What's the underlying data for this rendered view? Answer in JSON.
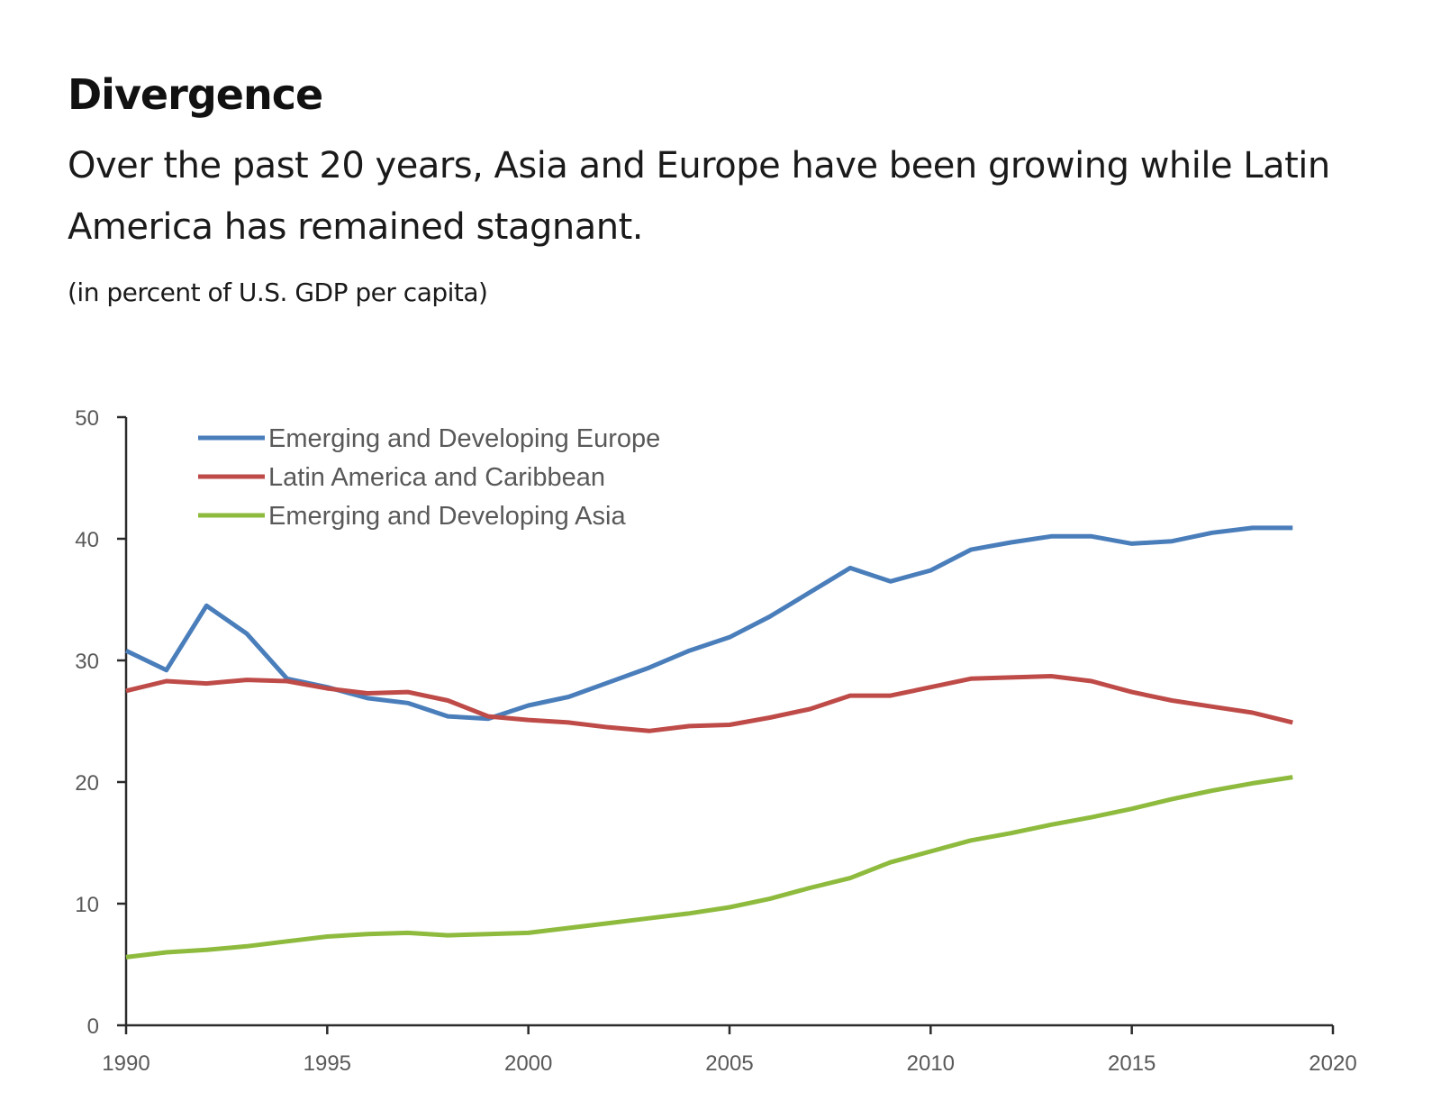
{
  "header": {
    "title": "Divergence",
    "subtitle": "Over the past 20 years, Asia and Europe have been growing while Latin America has remained stagnant.",
    "unit": "(in percent of U.S. GDP per capita)"
  },
  "chart_data": {
    "type": "line",
    "title": "Divergence",
    "subtitle": "Over the past 20 years, Asia and Europe have been growing while Latin America has remained stagnant.",
    "ylabel": "(in percent of U.S. GDP per capita)",
    "xlabel": "",
    "xlim": [
      1990,
      2020
    ],
    "ylim": [
      0,
      50
    ],
    "xticks": [
      1990,
      1995,
      2000,
      2005,
      2010,
      2015,
      2020
    ],
    "yticks": [
      0,
      10,
      20,
      30,
      40,
      50
    ],
    "grid": false,
    "legend_position": "top-left",
    "x": [
      1990,
      1991,
      1992,
      1993,
      1994,
      1995,
      1996,
      1997,
      1998,
      1999,
      2000,
      2001,
      2002,
      2003,
      2004,
      2005,
      2006,
      2007,
      2008,
      2009,
      2010,
      2011,
      2012,
      2013,
      2014,
      2015,
      2016,
      2017,
      2018,
      2019
    ],
    "series": [
      {
        "name": "Emerging and Developing Europe",
        "color": "#4a7ebb",
        "values": [
          30.8,
          29.2,
          34.5,
          32.2,
          28.5,
          27.8,
          26.9,
          26.5,
          25.4,
          25.2,
          26.3,
          27.0,
          28.2,
          29.4,
          30.8,
          31.9,
          33.6,
          35.6,
          37.6,
          36.5,
          37.4,
          39.1,
          39.7,
          40.2,
          40.2,
          39.6,
          39.8,
          40.5,
          40.9,
          40.9
        ]
      },
      {
        "name": "Latin America and Caribbean",
        "color": "#be4b48",
        "values": [
          27.5,
          28.3,
          28.1,
          28.4,
          28.3,
          27.7,
          27.3,
          27.4,
          26.7,
          25.4,
          25.1,
          24.9,
          24.5,
          24.2,
          24.6,
          24.7,
          25.3,
          26.0,
          27.1,
          27.1,
          27.8,
          28.5,
          28.6,
          28.7,
          28.3,
          27.4,
          26.7,
          26.2,
          25.7,
          24.9
        ]
      },
      {
        "name": "Emerging and Developing Asia",
        "color": "#8ebb3e",
        "values": [
          5.6,
          6.0,
          6.2,
          6.5,
          6.9,
          7.3,
          7.5,
          7.6,
          7.4,
          7.5,
          7.6,
          8.0,
          8.4,
          8.8,
          9.2,
          9.7,
          10.4,
          11.3,
          12.1,
          13.4,
          14.3,
          15.2,
          15.8,
          16.5,
          17.1,
          17.8,
          18.6,
          19.3,
          19.9,
          20.4
        ]
      }
    ]
  }
}
